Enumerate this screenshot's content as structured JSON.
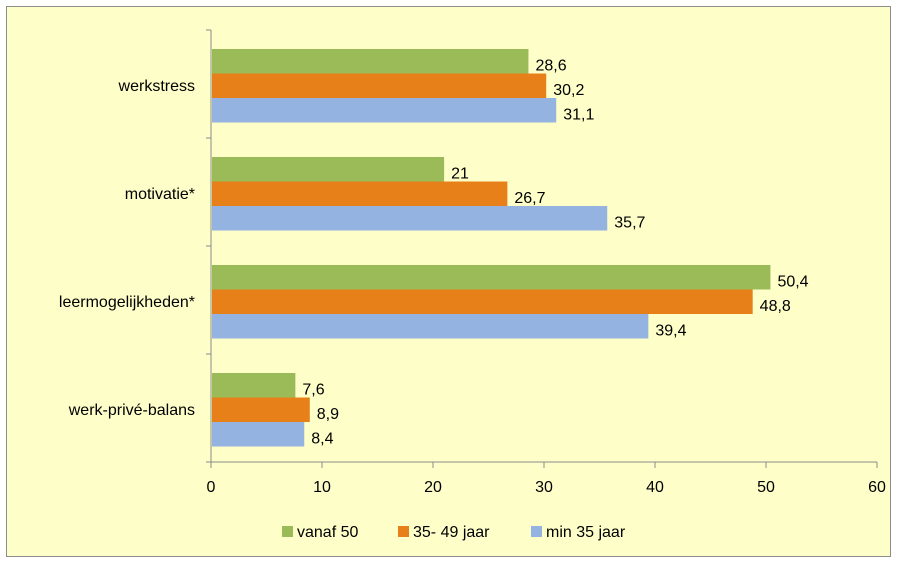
{
  "chart_data": {
    "type": "bar",
    "orientation": "horizontal",
    "categories": [
      "werkstress",
      "motivatie*",
      "leermogelijkheden*",
      "werk-privé-balans"
    ],
    "series": [
      {
        "name": "vanaf 50",
        "color": "#9bbb59",
        "values": [
          28.6,
          21,
          50.4,
          7.6
        ],
        "labels": [
          "28,6",
          "21",
          "50,4",
          "7,6"
        ]
      },
      {
        "name": "35- 49 jaar",
        "color": "#e8801a",
        "values": [
          30.2,
          26.7,
          48.8,
          8.9
        ],
        "labels": [
          "30,2",
          "26,7",
          "48,8",
          "8,9"
        ]
      },
      {
        "name": "min 35 jaar",
        "color": "#95b3e0",
        "values": [
          31.1,
          35.7,
          39.4,
          8.4
        ],
        "labels": [
          "31,1",
          "35,7",
          "39,4",
          "8,4"
        ]
      }
    ],
    "xlim": [
      0,
      60
    ],
    "xticks": [
      "0",
      "10",
      "20",
      "30",
      "40",
      "50",
      "60"
    ],
    "grid": false,
    "legend_position": "bottom",
    "background_color": "#fefec9"
  }
}
